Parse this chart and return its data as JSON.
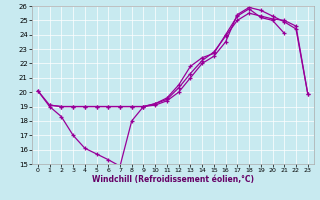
{
  "xlabel": "Windchill (Refroidissement éolien,°C)",
  "xlim": [
    -0.5,
    23.5
  ],
  "ylim": [
    15,
    26
  ],
  "xticks": [
    0,
    1,
    2,
    3,
    4,
    5,
    6,
    7,
    8,
    9,
    10,
    11,
    12,
    13,
    14,
    15,
    16,
    17,
    18,
    19,
    20,
    21,
    22,
    23
  ],
  "yticks": [
    15,
    16,
    17,
    18,
    19,
    20,
    21,
    22,
    23,
    24,
    25,
    26
  ],
  "bg_color": "#c8eaf0",
  "line_color": "#990099",
  "line_a_x": [
    0,
    1,
    2,
    3,
    4,
    5,
    6,
    7,
    8,
    9,
    10,
    11,
    12,
    13,
    14,
    15,
    16,
    17,
    18,
    19,
    20,
    21
  ],
  "line_a_y": [
    20.1,
    19.0,
    18.3,
    17.0,
    16.1,
    15.7,
    15.3,
    14.85,
    18.0,
    19.0,
    19.2,
    19.6,
    20.5,
    21.8,
    22.4,
    22.7,
    24.0,
    25.3,
    25.8,
    25.2,
    25.0,
    24.1
  ],
  "line_b_x": [
    0,
    1,
    2,
    3,
    4,
    5,
    6,
    7,
    8,
    9,
    10,
    11,
    12,
    13,
    14,
    15,
    16,
    17,
    18,
    19,
    20,
    21,
    22,
    23
  ],
  "line_b_y": [
    20.1,
    19.1,
    19.0,
    19.0,
    19.0,
    19.0,
    19.0,
    19.0,
    19.0,
    19.0,
    19.2,
    19.5,
    20.3,
    21.3,
    22.2,
    22.8,
    23.9,
    25.0,
    25.5,
    25.3,
    25.1,
    25.0,
    24.6,
    19.9
  ],
  "line_c_x": [
    1,
    2,
    3,
    4,
    5,
    6,
    7,
    8,
    9,
    10,
    11,
    12,
    13,
    14,
    15,
    16,
    17,
    18,
    19,
    20,
    21,
    22,
    23
  ],
  "line_c_y": [
    19.1,
    19.0,
    19.0,
    19.0,
    19.0,
    19.0,
    19.0,
    19.0,
    19.0,
    19.1,
    19.4,
    20.0,
    21.0,
    22.0,
    22.5,
    23.5,
    25.4,
    25.9,
    25.7,
    25.3,
    24.9,
    24.4,
    19.9
  ]
}
